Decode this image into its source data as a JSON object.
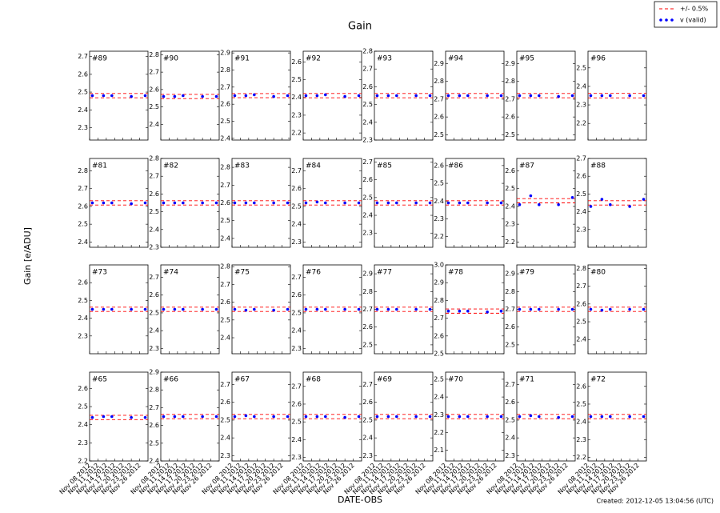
{
  "title": "Gain",
  "xlabel": "DATE-OBS",
  "ylabel": "Gain [e/ADU]",
  "footer": "Created: 2012-12-05 13:04:56 (UTC)",
  "legend": [
    {
      "name": "+/- 0.5%",
      "color": "#ff0000"
    },
    {
      "name": "v (valid)",
      "color": "#0000ff"
    }
  ],
  "x": [
    "Nov 09 2012",
    "Nov 13 2012",
    "Nov 16 2012",
    "Nov 23 2012",
    "Nov 28 2012"
  ],
  "xlim": [
    "Nov 08 2012",
    "Nov 29 2012"
  ],
  "xticks": [
    "Nov 08 2012",
    "Nov 11 2012",
    "Nov 14 2012",
    "Nov 17 2012",
    "Nov 20 2012",
    "Nov 23 2012",
    "Nov 26 2012"
  ],
  "chart_data": [
    {
      "type": "scatter",
      "label": "#89",
      "ylim": [
        2.23,
        2.73
      ],
      "yticks": [
        2.3,
        2.4,
        2.5,
        2.6,
        2.7
      ],
      "values": [
        2.48,
        2.48,
        2.48,
        2.475,
        2.48
      ],
      "band": [
        2.468,
        2.492
      ]
    },
    {
      "type": "scatter",
      "label": "#90",
      "ylim": [
        2.31,
        2.82
      ],
      "yticks": [
        2.4,
        2.5,
        2.6,
        2.7,
        2.8
      ],
      "values": [
        2.56,
        2.56,
        2.565,
        2.56,
        2.56
      ],
      "band": [
        2.548,
        2.572
      ]
    },
    {
      "type": "scatter",
      "label": "#91",
      "ylim": [
        2.39,
        2.91
      ],
      "yticks": [
        2.4,
        2.5,
        2.6,
        2.7,
        2.8,
        2.9
      ],
      "values": [
        2.65,
        2.65,
        2.655,
        2.645,
        2.65
      ],
      "band": [
        2.638,
        2.662
      ]
    },
    {
      "type": "scatter",
      "label": "#92",
      "ylim": [
        2.16,
        2.66
      ],
      "yticks": [
        2.2,
        2.3,
        2.4,
        2.5,
        2.6
      ],
      "values": [
        2.41,
        2.41,
        2.415,
        2.405,
        2.41
      ],
      "band": [
        2.398,
        2.422
      ]
    },
    {
      "type": "scatter",
      "label": "#93",
      "ylim": [
        2.3,
        2.8
      ],
      "yticks": [
        2.3,
        2.4,
        2.5,
        2.6,
        2.7,
        2.8
      ],
      "values": [
        2.55,
        2.55,
        2.55,
        2.55,
        2.55
      ],
      "band": [
        2.538,
        2.562
      ]
    },
    {
      "type": "scatter",
      "label": "#94",
      "ylim": [
        2.47,
        2.97
      ],
      "yticks": [
        2.5,
        2.6,
        2.7,
        2.8,
        2.9
      ],
      "values": [
        2.72,
        2.72,
        2.72,
        2.72,
        2.72
      ],
      "band": [
        2.708,
        2.732
      ]
    },
    {
      "type": "scatter",
      "label": "#95",
      "ylim": [
        2.47,
        2.97
      ],
      "yticks": [
        2.5,
        2.6,
        2.7,
        2.8,
        2.9
      ],
      "values": [
        2.72,
        2.72,
        2.72,
        2.715,
        2.72
      ],
      "band": [
        2.708,
        2.732
      ]
    },
    {
      "type": "scatter",
      "label": "#96",
      "ylim": [
        2.11,
        2.59
      ],
      "yticks": [
        2.2,
        2.3,
        2.4,
        2.5
      ],
      "values": [
        2.35,
        2.35,
        2.35,
        2.35,
        2.35
      ],
      "band": [
        2.338,
        2.362
      ]
    },
    {
      "type": "scatter",
      "label": "#81",
      "ylim": [
        2.37,
        2.87
      ],
      "yticks": [
        2.4,
        2.5,
        2.6,
        2.7,
        2.8
      ],
      "values": [
        2.62,
        2.62,
        2.62,
        2.615,
        2.62
      ],
      "band": [
        2.608,
        2.632
      ]
    },
    {
      "type": "scatter",
      "label": "#82",
      "ylim": [
        2.3,
        2.8
      ],
      "yticks": [
        2.3,
        2.4,
        2.5,
        2.6,
        2.7,
        2.8
      ],
      "values": [
        2.55,
        2.55,
        2.55,
        2.55,
        2.55
      ],
      "band": [
        2.538,
        2.562
      ]
    },
    {
      "type": "scatter",
      "label": "#83",
      "ylim": [
        2.35,
        2.85
      ],
      "yticks": [
        2.4,
        2.5,
        2.6,
        2.7,
        2.8
      ],
      "values": [
        2.6,
        2.6,
        2.6,
        2.6,
        2.6
      ],
      "band": [
        2.588,
        2.612
      ]
    },
    {
      "type": "scatter",
      "label": "#84",
      "ylim": [
        2.27,
        2.77
      ],
      "yticks": [
        2.3,
        2.4,
        2.5,
        2.6,
        2.7
      ],
      "values": [
        2.52,
        2.525,
        2.52,
        2.52,
        2.52
      ],
      "band": [
        2.508,
        2.532
      ]
    },
    {
      "type": "scatter",
      "label": "#85",
      "ylim": [
        2.22,
        2.72
      ],
      "yticks": [
        2.3,
        2.4,
        2.5,
        2.6,
        2.7
      ],
      "values": [
        2.47,
        2.47,
        2.47,
        2.47,
        2.47
      ],
      "band": [
        2.458,
        2.482
      ]
    },
    {
      "type": "scatter",
      "label": "#86",
      "ylim": [
        2.14,
        2.64
      ],
      "yticks": [
        2.2,
        2.3,
        2.4,
        2.5,
        2.6
      ],
      "values": [
        2.39,
        2.39,
        2.39,
        2.39,
        2.39
      ],
      "band": [
        2.378,
        2.402
      ]
    },
    {
      "type": "scatter",
      "label": "#87",
      "ylim": [
        2.17,
        2.67
      ],
      "yticks": [
        2.2,
        2.3,
        2.4,
        2.5,
        2.6
      ],
      "values": [
        2.41,
        2.46,
        2.41,
        2.41,
        2.45
      ],
      "band": [
        2.42,
        2.444
      ]
    },
    {
      "type": "scatter",
      "label": "#88",
      "ylim": [
        2.2,
        2.7
      ],
      "yticks": [
        2.3,
        2.4,
        2.5,
        2.6,
        2.7
      ],
      "values": [
        2.43,
        2.47,
        2.44,
        2.43,
        2.47
      ],
      "band": [
        2.438,
        2.462
      ]
    },
    {
      "type": "scatter",
      "label": "#73",
      "ylim": [
        2.2,
        2.7
      ],
      "yticks": [
        2.3,
        2.4,
        2.5,
        2.6
      ],
      "values": [
        2.45,
        2.45,
        2.45,
        2.45,
        2.45
      ],
      "band": [
        2.438,
        2.462
      ]
    },
    {
      "type": "scatter",
      "label": "#74",
      "ylim": [
        2.27,
        2.77
      ],
      "yticks": [
        2.3,
        2.4,
        2.5,
        2.6,
        2.7
      ],
      "values": [
        2.52,
        2.52,
        2.52,
        2.52,
        2.52
      ],
      "band": [
        2.508,
        2.532
      ]
    },
    {
      "type": "scatter",
      "label": "#75",
      "ylim": [
        2.31,
        2.81
      ],
      "yticks": [
        2.4,
        2.5,
        2.6,
        2.7,
        2.8
      ],
      "values": [
        2.56,
        2.555,
        2.56,
        2.555,
        2.56
      ],
      "band": [
        2.548,
        2.572
      ]
    },
    {
      "type": "scatter",
      "label": "#76",
      "ylim": [
        2.27,
        2.77
      ],
      "yticks": [
        2.3,
        2.4,
        2.5,
        2.6,
        2.7
      ],
      "values": [
        2.52,
        2.52,
        2.52,
        2.52,
        2.52
      ],
      "band": [
        2.508,
        2.532
      ]
    },
    {
      "type": "scatter",
      "label": "#77",
      "ylim": [
        2.45,
        2.95
      ],
      "yticks": [
        2.5,
        2.6,
        2.7,
        2.8,
        2.9
      ],
      "values": [
        2.7,
        2.7,
        2.7,
        2.7,
        2.7
      ],
      "band": [
        2.688,
        2.712
      ]
    },
    {
      "type": "scatter",
      "label": "#78",
      "ylim": [
        2.5,
        3.0
      ],
      "yticks": [
        2.5,
        2.6,
        2.7,
        2.8,
        2.9,
        {
          "value": 3,
          "label": "3.0"
        }
      ],
      "values": [
        2.74,
        2.74,
        2.74,
        2.735,
        2.74
      ],
      "band": [
        2.728,
        2.752
      ]
    },
    {
      "type": "scatter",
      "label": "#79",
      "ylim": [
        2.45,
        2.95
      ],
      "yticks": [
        2.5,
        2.6,
        2.7,
        2.8,
        2.9
      ],
      "values": [
        2.7,
        2.7,
        2.7,
        2.7,
        2.7
      ],
      "band": [
        2.688,
        2.712
      ]
    },
    {
      "type": "scatter",
      "label": "#80",
      "ylim": [
        2.32,
        2.82
      ],
      "yticks": [
        2.4,
        2.5,
        2.6,
        2.7,
        2.8
      ],
      "values": [
        2.57,
        2.565,
        2.57,
        2.57,
        2.57
      ],
      "band": [
        2.558,
        2.582
      ]
    },
    {
      "type": "scatter",
      "label": "#65",
      "ylim": [
        2.2,
        2.69
      ],
      "yticks": [
        2.2,
        2.3,
        2.4,
        2.5,
        2.6
      ],
      "values": [
        2.44,
        2.445,
        2.445,
        2.44,
        2.44
      ],
      "band": [
        2.428,
        2.452
      ]
    },
    {
      "type": "scatter",
      "label": "#66",
      "ylim": [
        2.4,
        2.9
      ],
      "yticks": [
        2.4,
        2.5,
        2.6,
        2.7,
        2.8,
        2.9
      ],
      "values": [
        2.65,
        2.65,
        2.65,
        2.65,
        2.65
      ],
      "band": [
        2.638,
        2.662
      ]
    },
    {
      "type": "scatter",
      "label": "#67",
      "ylim": [
        2.27,
        2.77
      ],
      "yticks": [
        2.3,
        2.4,
        2.5,
        2.6,
        2.7
      ],
      "values": [
        2.52,
        2.525,
        2.52,
        2.52,
        2.52
      ],
      "band": [
        2.508,
        2.532
      ]
    },
    {
      "type": "scatter",
      "label": "#68",
      "ylim": [
        2.28,
        2.78
      ],
      "yticks": [
        2.3,
        2.4,
        2.5,
        2.6,
        2.7
      ],
      "values": [
        2.53,
        2.53,
        2.53,
        2.525,
        2.53
      ],
      "band": [
        2.518,
        2.542
      ]
    },
    {
      "type": "scatter",
      "label": "#69",
      "ylim": [
        2.27,
        2.77
      ],
      "yticks": [
        2.3,
        2.4,
        2.5,
        2.6,
        2.7
      ],
      "values": [
        2.52,
        2.52,
        2.52,
        2.52,
        2.52
      ],
      "band": [
        2.508,
        2.532
      ]
    },
    {
      "type": "scatter",
      "label": "#70",
      "ylim": [
        2.04,
        2.54
      ],
      "yticks": [
        2.1,
        2.2,
        2.3,
        2.4,
        2.5
      ],
      "values": [
        2.29,
        2.29,
        2.29,
        2.29,
        2.29
      ],
      "band": [
        2.278,
        2.302
      ]
    },
    {
      "type": "scatter",
      "label": "#71",
      "ylim": [
        2.27,
        2.77
      ],
      "yticks": [
        2.3,
        2.4,
        2.5,
        2.6,
        2.7
      ],
      "values": [
        2.52,
        2.525,
        2.52,
        2.515,
        2.52
      ],
      "band": [
        2.508,
        2.532
      ]
    },
    {
      "type": "scatter",
      "label": "#72",
      "ylim": [
        2.18,
        2.68
      ],
      "yticks": [
        2.2,
        2.3,
        2.4,
        2.5,
        2.6
      ],
      "values": [
        2.43,
        2.43,
        2.43,
        2.43,
        2.43
      ],
      "band": [
        2.418,
        2.442
      ]
    }
  ]
}
